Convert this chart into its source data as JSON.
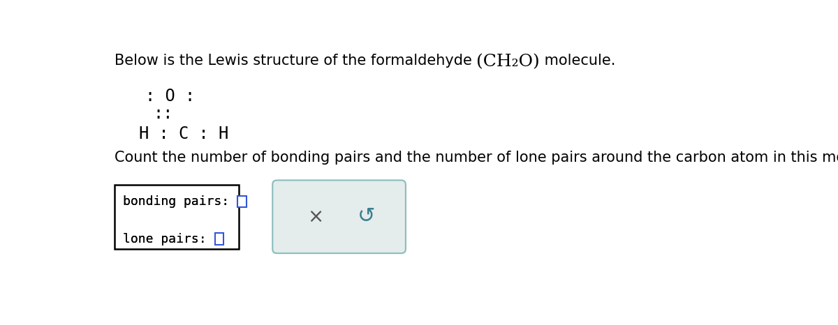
{
  "bg_color": "#ffffff",
  "title_part1": "Below is the Lewis structure of the formaldehyde ",
  "title_formula": "(CH₂O)",
  "title_part2": " molecule.",
  "lewis_line1": ": O :",
  "lewis_line2": "::",
  "lewis_line3": "H : C : H",
  "question_text": "Count the number of bonding pairs and the number of lone pairs around the carbon atom in this molecule.",
  "bonding_label": "bonding pairs: ",
  "lone_label": "lone pairs: ",
  "title_fontsize": 15,
  "lewis_fontsize": 17,
  "question_fontsize": 15,
  "label_fontsize": 13,
  "box_color": "#3355dd",
  "second_box_stroke": "#8bbcbc",
  "second_box_fill": "#e4ecec",
  "cross_color": "#555555",
  "undo_color": "#3a7f8f"
}
